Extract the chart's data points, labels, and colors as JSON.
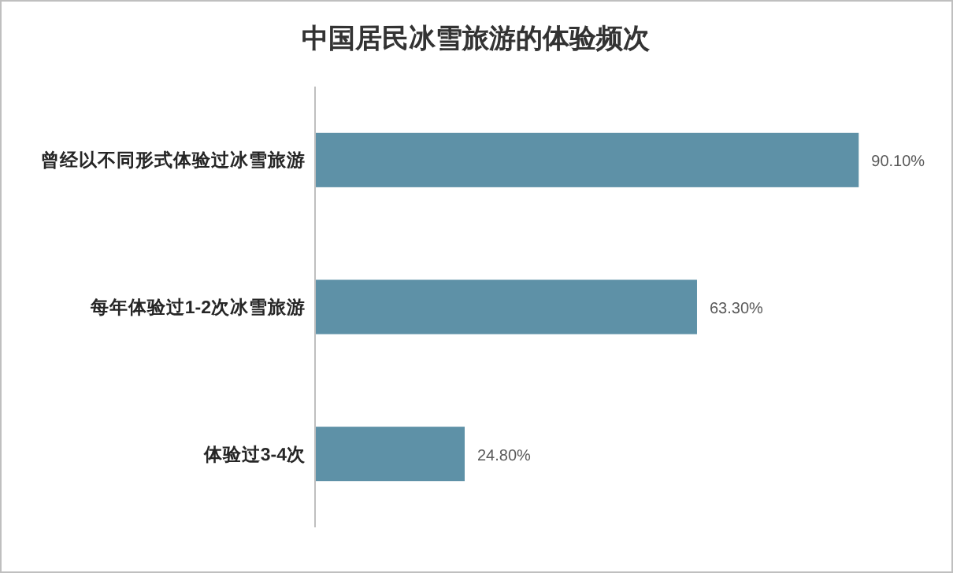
{
  "chart_data": {
    "type": "bar",
    "orientation": "horizontal",
    "title": "中国居民冰雪旅游的体验频次",
    "categories": [
      "曾经以不同形式体验过冰雪旅游",
      "每年体验过1-2次冰雪旅游",
      "体验过3-4次"
    ],
    "values": [
      90.1,
      63.3,
      24.8
    ],
    "value_labels": [
      "90.10%",
      "63.30%",
      "24.80%"
    ],
    "color": "#5e91a7"
  }
}
